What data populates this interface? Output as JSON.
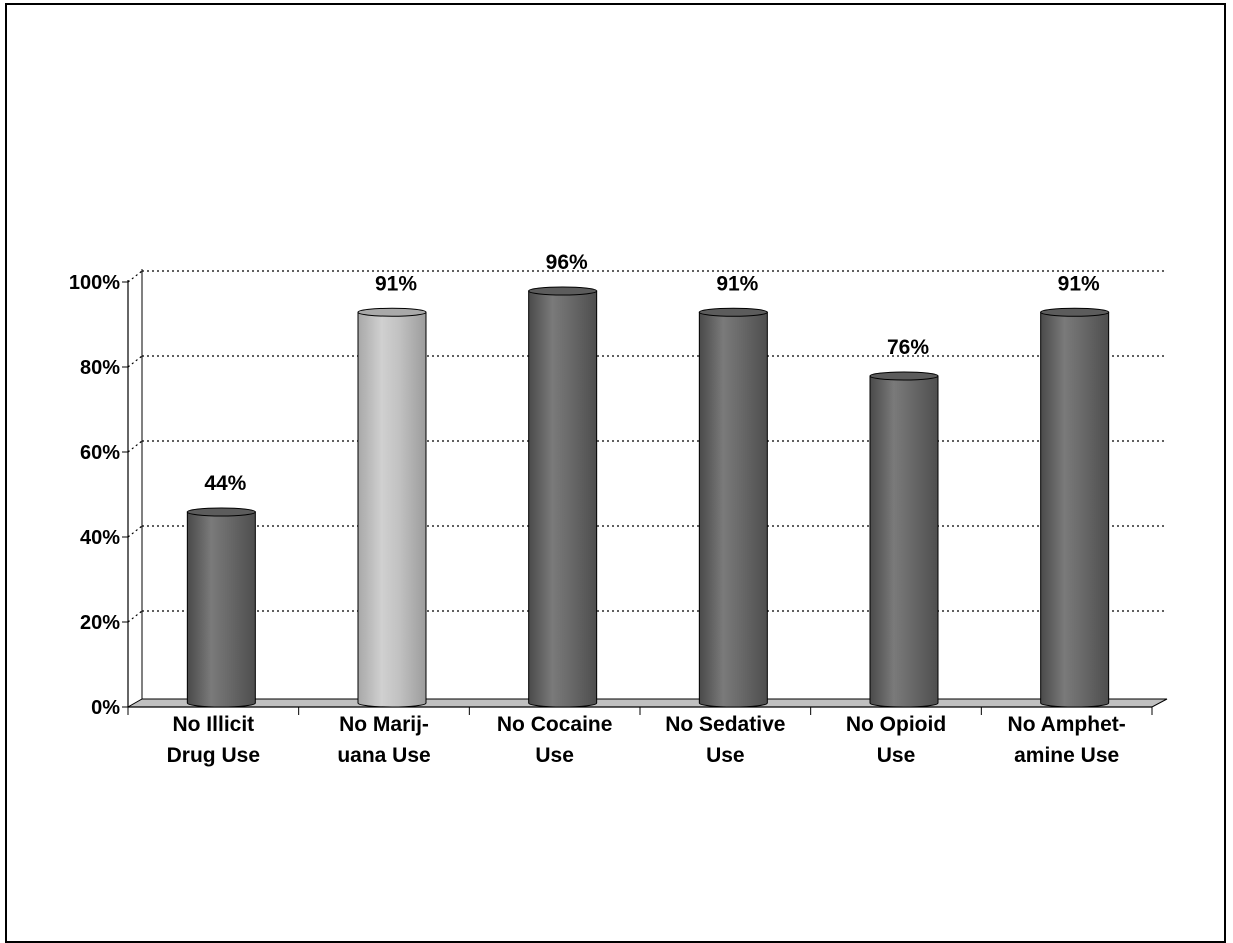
{
  "chart_data": {
    "type": "bar",
    "style": "3d-cylinder",
    "categories": [
      [
        "No Illicit",
        "Drug Use"
      ],
      [
        "No Marij-",
        "uana Use"
      ],
      [
        "No Cocaine",
        "Use"
      ],
      [
        "No Sedative",
        "Use"
      ],
      [
        "No Opioid",
        "Use"
      ],
      [
        "No Amphet-",
        "amine Use"
      ]
    ],
    "values": [
      44,
      91,
      96,
      91,
      76,
      91
    ],
    "data_labels": [
      "44%",
      "91%",
      "96%",
      "91%",
      "76%",
      "91%"
    ],
    "highlight_index": 1,
    "y_ticks": [
      "0%",
      "20%",
      "40%",
      "60%",
      "80%",
      "100%"
    ],
    "ylim": [
      0,
      100
    ],
    "grid": "dotted-horizontal",
    "legend": "none",
    "colors": {
      "bar": "#6e6e6e",
      "bar_highlight": "#bdbdbd",
      "floor": "#c0c0c0",
      "axis": "#000000"
    }
  }
}
